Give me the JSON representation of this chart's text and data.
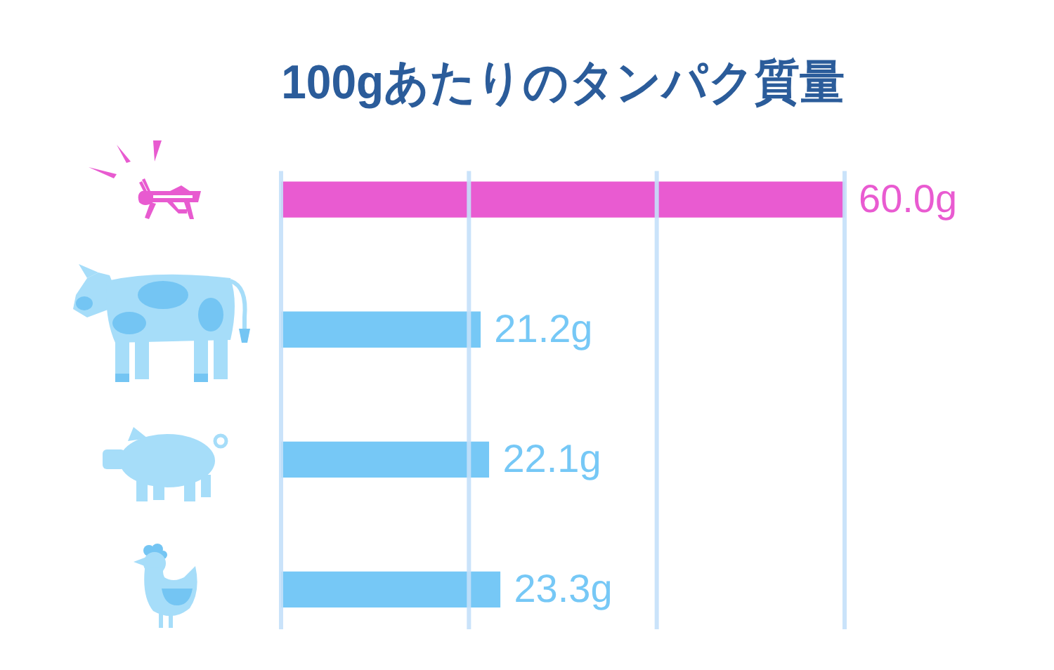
{
  "chart_data": {
    "type": "bar",
    "orientation": "horizontal",
    "title": "100gあたりのタンパク質量",
    "categories": [
      null,
      null,
      null,
      null
    ],
    "values": [
      60.0,
      21.2,
      22.1,
      23.3
    ],
    "colors": [
      "#e95bd1",
      "#76c8f6",
      "#76c8f6",
      "#76c8f6"
    ],
    "value_labels": [
      "60.0g",
      "21.2g",
      "22.1g",
      "23.3g"
    ],
    "xlim": [
      0,
      60
    ],
    "xticks": [
      {
        "value": 0,
        "label": null
      },
      {
        "value": 20,
        "label": null
      },
      {
        "value": 40,
        "label": null
      },
      {
        "value": 60,
        "label": null
      }
    ],
    "grid": "x",
    "tick_labels": false,
    "legend": false
  }
}
